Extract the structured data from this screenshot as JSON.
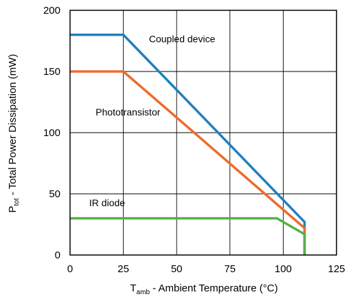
{
  "chart_data": {
    "type": "line",
    "xlabel": {
      "main": "T",
      "sub": "amb",
      "rest": " - Ambient Temperature (°C)"
    },
    "ylabel": {
      "main": "P",
      "sub": "tot",
      "rest": " - Total Power Dissipation (mW)"
    },
    "xlim": [
      0,
      125
    ],
    "ylim": [
      0,
      200
    ],
    "xticks": [
      0,
      25,
      50,
      75,
      100,
      125
    ],
    "yticks": [
      0,
      50,
      100,
      150,
      200
    ],
    "grid": true,
    "series": [
      {
        "name": "Coupled device",
        "color": "#1f7fc0",
        "x": [
          0,
          25,
          110,
          110
        ],
        "y": [
          180,
          180,
          27,
          0
        ]
      },
      {
        "name": "Phototransistor",
        "color": "#ee6a2a",
        "x": [
          0,
          25,
          110,
          110
        ],
        "y": [
          150,
          150,
          22,
          0
        ]
      },
      {
        "name": "IR diode",
        "color": "#55b147",
        "x": [
          0,
          97,
          110,
          110
        ],
        "y": [
          30,
          30,
          17,
          0
        ]
      }
    ],
    "annotations": [
      {
        "text": "Coupled device",
        "x": 37,
        "y": 174
      },
      {
        "text": "Phototransistor",
        "x": 12,
        "y": 114
      },
      {
        "text": "IR diode",
        "x": 9,
        "y": 40
      }
    ]
  }
}
